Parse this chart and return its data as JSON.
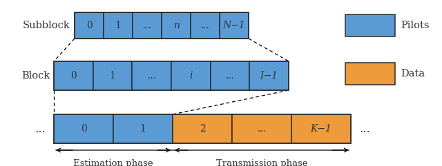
{
  "pilot_color": "#5B9BD5",
  "data_color": "#ED9B3B",
  "edge_color": "#2C2C2C",
  "bg_color": "#ffffff",
  "text_color": "#333333",
  "row1_label": "Subblock",
  "row1_cells": [
    "0",
    "1",
    "...",
    "n",
    "...",
    "N−1"
  ],
  "row1_italic": [
    3,
    5
  ],
  "row2_label": "Block",
  "row2_cells": [
    "0",
    "1",
    "...",
    "i",
    "...",
    "I−1"
  ],
  "row2_italic": [
    3,
    5
  ],
  "row3_prefix": "...",
  "row3_suffix": "...",
  "row3_blue_cells": [
    "0",
    "1"
  ],
  "row3_orange_cells": [
    "2",
    "...",
    "K−1"
  ],
  "row3_orange_italic": [
    2
  ],
  "est_phase_label": "Estimation phase",
  "trans_phase_label": "Transmission phase",
  "legend_pilot_label": "Pilots",
  "legend_data_label": "Data",
  "font_size_label": 10.5,
  "font_size_cell": 10,
  "font_size_legend": 10.5,
  "font_size_phase": 9.5,
  "font_size_dots": 12
}
